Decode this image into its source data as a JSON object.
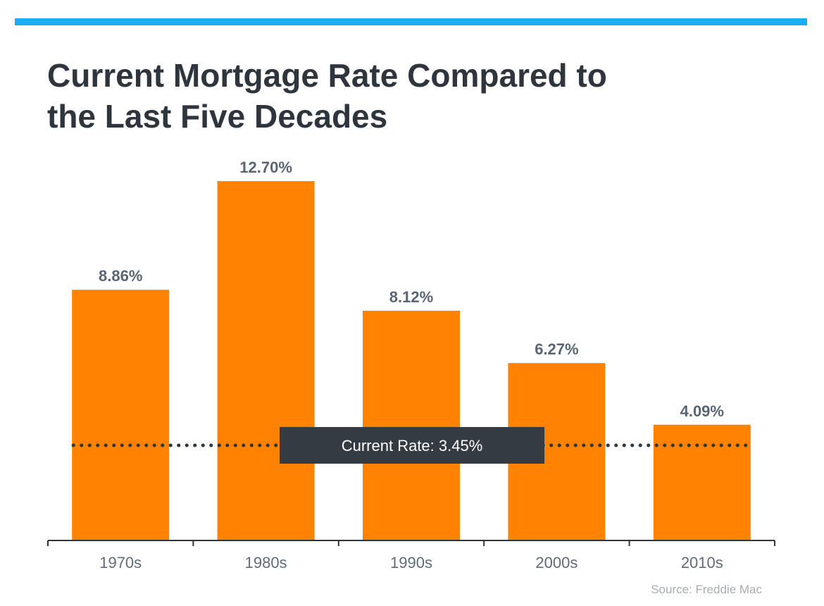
{
  "title_lines": [
    "Current Mortgage Rate Compared to",
    "the Last Five Decades"
  ],
  "source": "Source: Freddie Mac",
  "colors": {
    "accent_bar": "#1badf0",
    "bar": "#ff8200",
    "title_text": "#2f353d",
    "value_label": "#5a6573",
    "axis_label": "#5f6b78",
    "reference_box": "#353b42",
    "reference_text": "#ffffff"
  },
  "chart_data": {
    "type": "bar",
    "title": "Current Mortgage Rate Compared to the Last Five Decades",
    "categories": [
      "1970s",
      "1980s",
      "1990s",
      "2000s",
      "2010s"
    ],
    "values": [
      8.86,
      12.7,
      8.12,
      6.27,
      4.09
    ],
    "value_labels": [
      "8.86%",
      "12.70%",
      "8.12%",
      "6.27%",
      "4.09%"
    ],
    "xlabel": "",
    "ylabel": "",
    "ylim": [
      0,
      12.7
    ],
    "grid": false,
    "reference_line": {
      "value": 3.45,
      "label": "Current Rate: 3.45%",
      "style": "dotted"
    },
    "source": "Source: Freddie Mac"
  }
}
